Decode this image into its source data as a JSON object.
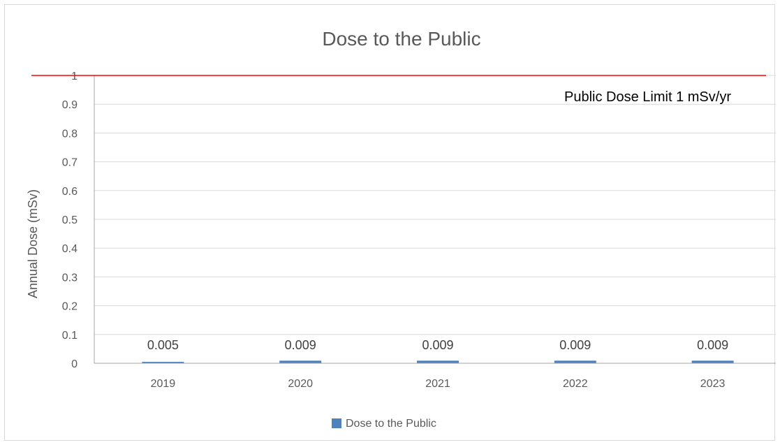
{
  "chart_data": {
    "type": "bar",
    "title": "Dose to the Public",
    "xlabel": "",
    "ylabel": "Annual Dose (mSv)",
    "categories": [
      "2019",
      "2020",
      "2021",
      "2022",
      "2023"
    ],
    "series": [
      {
        "name": "Dose to the Public",
        "values": [
          0.005,
          0.009,
          0.009,
          0.009,
          0.009
        ],
        "color": "#4f81bd"
      }
    ],
    "data_labels": [
      "0.005",
      "0.009",
      "0.009",
      "0.009",
      "0.009"
    ],
    "ylim": [
      0,
      1
    ],
    "yticks": [
      "0",
      "0.1",
      "0.2",
      "0.3",
      "0.4",
      "0.5",
      "0.6",
      "0.7",
      "0.8",
      "0.9",
      "1"
    ],
    "grid": true,
    "legend_position": "bottom",
    "reference_line": {
      "value": 1,
      "label": "Public Dose Limit 1 mSv/yr",
      "color": "#ff0000"
    },
    "gridline_color": "#d9d9d9",
    "axis_color": "#a6a6a6"
  }
}
